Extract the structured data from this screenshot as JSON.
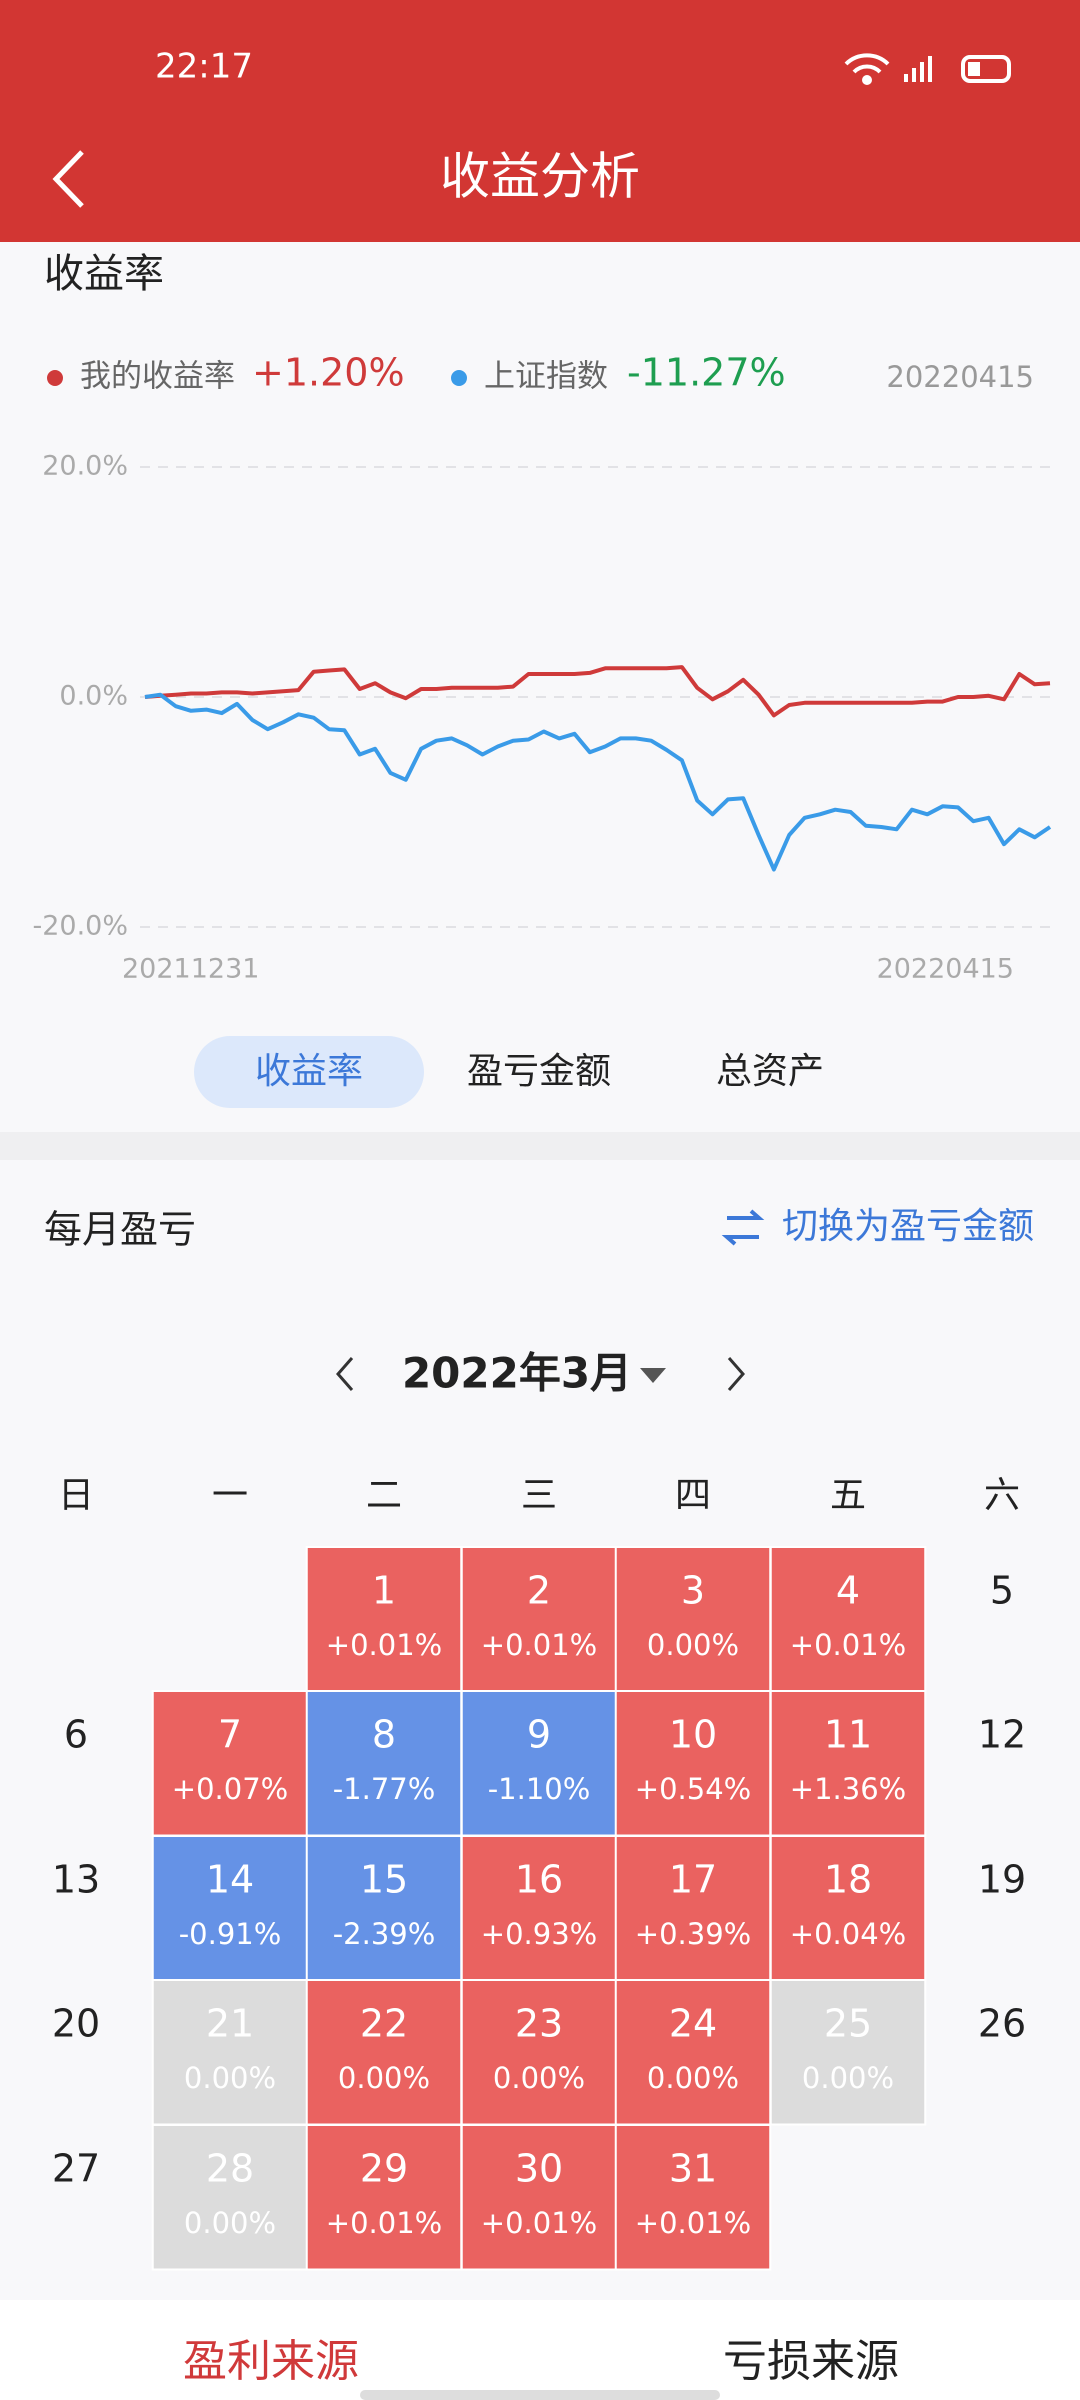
{
  "status_bar": {
    "time": "22:17"
  },
  "header": {
    "title": "收益分析"
  },
  "return_chart": {
    "type": "line",
    "title": "收益率",
    "date": "20220415",
    "categories": [
      "20211231",
      null,
      null,
      null,
      null,
      null,
      null,
      null,
      null,
      null,
      null,
      null,
      null,
      null,
      null,
      null,
      null,
      null,
      null,
      null,
      null,
      null,
      null,
      null,
      null,
      null,
      null,
      null,
      null,
      null,
      null,
      null,
      null,
      null,
      null,
      null,
      null,
      null,
      null,
      null,
      null,
      null,
      null,
      null,
      null,
      null,
      null,
      null,
      null,
      null,
      null,
      null,
      null,
      null,
      null,
      null,
      null,
      null,
      null,
      "20220415"
    ],
    "series": [
      {
        "name": "我的收益率",
        "summary": "+1.20%",
        "color": "#cf3a3a",
        "values": [
          0,
          0.1,
          0.2,
          0.3,
          0.3,
          0.4,
          0.4,
          0.3,
          0.4,
          0.5,
          0.6,
          2.2,
          2.3,
          2.4,
          0.7,
          1.2,
          0.4,
          -0.1,
          0.7,
          0.7,
          0.8,
          0.8,
          0.8,
          0.8,
          0.9,
          2.0,
          2.0,
          2.0,
          2.0,
          2.1,
          2.5,
          2.5,
          2.5,
          2.5,
          2.5,
          2.6,
          0.8,
          -0.2,
          0.5,
          1.5,
          0.2,
          -1.6,
          -0.7,
          -0.5,
          -0.5,
          -0.5,
          -0.5,
          -0.5,
          -0.5,
          -0.5,
          -0.5,
          -0.4,
          -0.4,
          0,
          0,
          0.1,
          -0.2,
          2.0,
          1.1,
          1.2
        ]
      },
      {
        "name": "上证指数",
        "summary": "-11.27%",
        "summary_color": "#1e9e50",
        "color": "#3a9be8",
        "values": [
          0,
          0.2,
          -0.8,
          -1.2,
          -1.1,
          -1.4,
          -0.6,
          -2.0,
          -2.8,
          -2.2,
          -1.5,
          -1.8,
          -2.8,
          -2.9,
          -5.0,
          -4.5,
          -6.6,
          -7.2,
          -4.5,
          -3.8,
          -3.6,
          -4.2,
          -5.0,
          -4.3,
          -3.8,
          -3.7,
          -3.0,
          -3.6,
          -3.2,
          -4.8,
          -4.3,
          -3.6,
          -3.6,
          -3.8,
          -4.6,
          -5.5,
          -9.0,
          -10.2,
          -8.9,
          -8.8,
          -12.0,
          -15.0,
          -12.0,
          -10.5,
          -10.2,
          -9.8,
          -10.0,
          -11.2,
          -11.3,
          -11.5,
          -9.8,
          -10.2,
          -9.5,
          -9.6,
          -10.8,
          -10.5,
          -12.8,
          -11.5,
          -12.2,
          -11.3
        ]
      }
    ],
    "ylim": [
      -20,
      20
    ],
    "yticks": [
      {
        "value": -20,
        "label": "-20.0%"
      },
      {
        "value": 0,
        "label": "0.0%"
      },
      {
        "value": 20,
        "label": "20.0%"
      }
    ],
    "grid": true
  },
  "tabs": [
    "收益率",
    "盈亏金额",
    "总资产"
  ],
  "monthly": {
    "title": "每月盈亏",
    "switch_link": "切换为盈亏金额",
    "month": "2022年3月",
    "weekdays": [
      "日",
      "一",
      "二",
      "三",
      "四",
      "五",
      "六"
    ],
    "days": [
      {
        "day": "1",
        "change": "+0.01%",
        "status": "gain"
      },
      {
        "day": "2",
        "change": "+0.01%",
        "status": "gain"
      },
      {
        "day": "3",
        "change": "0.00%",
        "status": "gain"
      },
      {
        "day": "4",
        "change": "+0.01%",
        "status": "gain"
      },
      {
        "day": "5"
      },
      {
        "day": "6"
      },
      {
        "day": "7",
        "change": "+0.07%",
        "status": "gain"
      },
      {
        "day": "8",
        "change": "-1.77%",
        "status": "loss"
      },
      {
        "day": "9",
        "change": "-1.10%",
        "status": "loss"
      },
      {
        "day": "10",
        "change": "+0.54%",
        "status": "gain"
      },
      {
        "day": "11",
        "change": "+1.36%",
        "status": "gain"
      },
      {
        "day": "12"
      },
      {
        "day": "13"
      },
      {
        "day": "14",
        "change": "-0.91%",
        "status": "loss"
      },
      {
        "day": "15",
        "change": "-2.39%",
        "status": "loss"
      },
      {
        "day": "16",
        "change": "+0.93%",
        "status": "gain"
      },
      {
        "day": "17",
        "change": "+0.39%",
        "status": "gain"
      },
      {
        "day": "18",
        "change": "+0.04%",
        "status": "gain"
      },
      {
        "day": "19"
      },
      {
        "day": "20"
      },
      {
        "day": "21",
        "change": "0.00%",
        "status": "flat"
      },
      {
        "day": "22",
        "change": "0.00%",
        "status": "gain"
      },
      {
        "day": "23",
        "change": "0.00%",
        "status": "gain"
      },
      {
        "day": "24",
        "change": "0.00%",
        "status": "gain"
      },
      {
        "day": "25",
        "change": "0.00%",
        "status": "flat"
      },
      {
        "day": "26"
      },
      {
        "day": "27"
      },
      {
        "day": "28",
        "change": "0.00%",
        "status": "flat"
      },
      {
        "day": "29",
        "change": "+0.01%",
        "status": "gain"
      },
      {
        "day": "30",
        "change": "+0.01%",
        "status": "gain"
      },
      {
        "day": "31",
        "change": "+0.01%",
        "status": "gain"
      }
    ]
  },
  "bottom_tabs": [
    "盈利来源",
    "亏损来源"
  ]
}
